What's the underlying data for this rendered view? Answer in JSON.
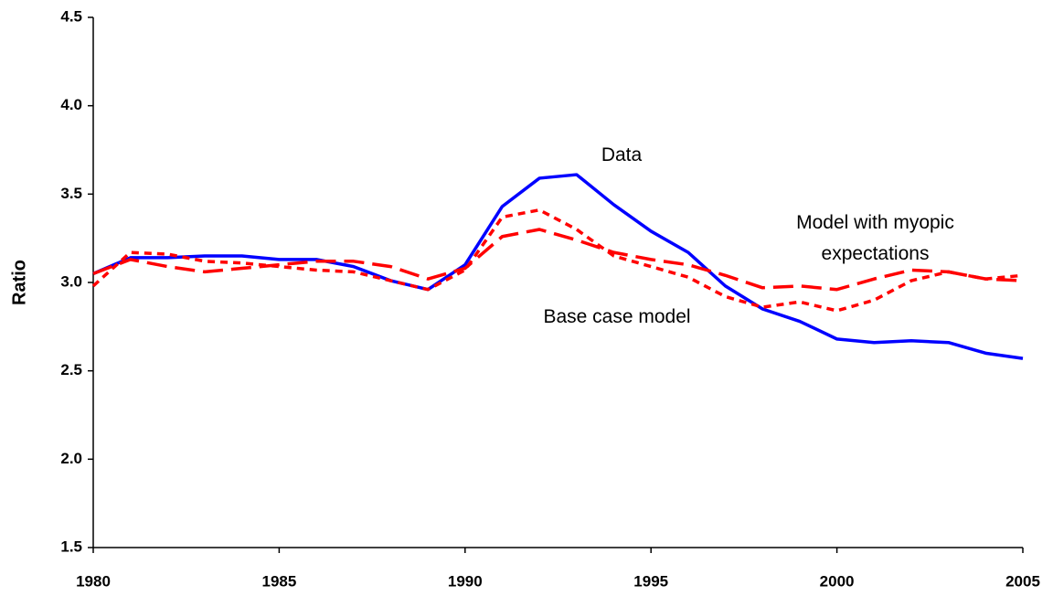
{
  "chart_data": {
    "type": "line",
    "y_label": "Ratio",
    "x": [
      1980,
      1981,
      1982,
      1983,
      1984,
      1985,
      1986,
      1987,
      1988,
      1989,
      1990,
      1991,
      1992,
      1993,
      1994,
      1995,
      1996,
      1997,
      1998,
      1999,
      2000,
      2001,
      2002,
      2003,
      2004,
      2005
    ],
    "series": [
      {
        "name": "Data",
        "color": "#0000ff",
        "dash": "solid",
        "values": [
          3.05,
          3.14,
          3.14,
          3.15,
          3.15,
          3.13,
          3.13,
          3.09,
          3.01,
          2.96,
          3.1,
          3.43,
          3.59,
          3.61,
          3.44,
          3.29,
          3.17,
          2.98,
          2.85,
          2.78,
          2.68,
          2.66,
          2.67,
          2.66,
          2.6,
          2.57
        ]
      },
      {
        "name": "Base case model",
        "color": "#ff0000",
        "dash": "dotted",
        "values": [
          2.98,
          3.17,
          3.16,
          3.12,
          3.11,
          3.09,
          3.07,
          3.06,
          3.01,
          2.96,
          3.07,
          3.37,
          3.41,
          3.3,
          3.15,
          3.09,
          3.03,
          2.92,
          2.86,
          2.89,
          2.84,
          2.9,
          3.01,
          3.06,
          3.02,
          3.04
        ]
      },
      {
        "name": "Model with myopic expectations",
        "color": "#ff0000",
        "dash": "dashed",
        "values": [
          3.05,
          3.13,
          3.09,
          3.06,
          3.08,
          3.1,
          3.12,
          3.12,
          3.09,
          3.02,
          3.08,
          3.26,
          3.3,
          3.24,
          3.17,
          3.13,
          3.1,
          3.04,
          2.97,
          2.98,
          2.96,
          3.02,
          3.07,
          3.06,
          3.02,
          3.01
        ]
      }
    ],
    "xlim": [
      1980,
      2005
    ],
    "xticks": [
      1980,
      1985,
      1990,
      1995,
      2000,
      2005
    ],
    "ylim": [
      1.5,
      4.5
    ],
    "yticks": [
      {
        "value": 1.5,
        "label": "1.5"
      },
      {
        "value": 2,
        "label": "2.0"
      },
      {
        "value": 2.5,
        "label": "2.5"
      },
      {
        "value": 3,
        "label": "3.0"
      },
      {
        "value": 3.5,
        "label": "3.5"
      },
      {
        "value": 4,
        "label": "4.0"
      },
      {
        "value": 4.5,
        "label": "4.5"
      }
    ]
  }
}
